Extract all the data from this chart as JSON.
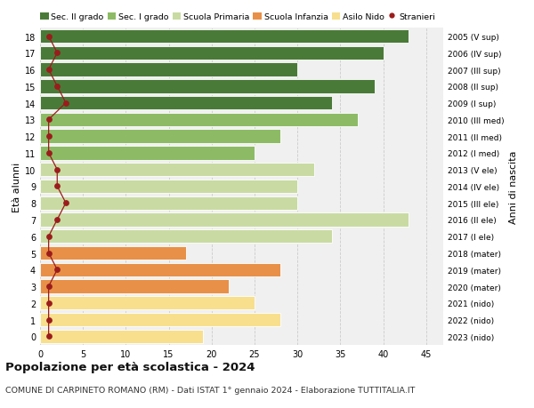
{
  "ages": [
    0,
    1,
    2,
    3,
    4,
    5,
    6,
    7,
    8,
    9,
    10,
    11,
    12,
    13,
    14,
    15,
    16,
    17,
    18
  ],
  "bar_values": [
    19,
    28,
    25,
    22,
    28,
    17,
    34,
    43,
    30,
    30,
    32,
    25,
    28,
    37,
    34,
    39,
    30,
    40,
    43
  ],
  "bar_colors": [
    "#f7df8e",
    "#f7df8e",
    "#f7df8e",
    "#e89048",
    "#e89048",
    "#e89048",
    "#c9dba2",
    "#c9dba2",
    "#c9dba2",
    "#c9dba2",
    "#c9dba2",
    "#8dbb65",
    "#8dbb65",
    "#8dbb65",
    "#4a7a38",
    "#4a7a38",
    "#4a7a38",
    "#4a7a38",
    "#4a7a38"
  ],
  "stranieri_values": [
    1,
    1,
    1,
    1,
    2,
    1,
    1,
    2,
    3,
    2,
    2,
    1,
    1,
    1,
    3,
    2,
    1,
    2,
    1
  ],
  "right_labels": [
    "2023 (nido)",
    "2022 (nido)",
    "2021 (nido)",
    "2020 (mater)",
    "2019 (mater)",
    "2018 (mater)",
    "2017 (I ele)",
    "2016 (II ele)",
    "2015 (III ele)",
    "2014 (IV ele)",
    "2013 (V ele)",
    "2012 (I med)",
    "2011 (II med)",
    "2010 (III med)",
    "2009 (I sup)",
    "2008 (II sup)",
    "2007 (III sup)",
    "2006 (IV sup)",
    "2005 (V sup)"
  ],
  "legend_labels": [
    "Sec. II grado",
    "Sec. I grado",
    "Scuola Primaria",
    "Scuola Infanzia",
    "Asilo Nido",
    "Stranieri"
  ],
  "legend_colors": [
    "#4a7a38",
    "#8dbb65",
    "#c9dba2",
    "#e89048",
    "#f7df8e",
    "#9b1c1c"
  ],
  "xlim": [
    0,
    47
  ],
  "title": "Popolazione per età scolastica - 2024",
  "subtitle": "COMUNE DI CARPINETO ROMANO (RM) - Dati ISTAT 1° gennaio 2024 - Elaborazione TUTTITALIA.IT",
  "ylabel": "Età alunni",
  "ylabel_right": "Anni di nascita",
  "background_color": "#ffffff",
  "plot_bg_color": "#f0f0f0",
  "grid_color": "#cccccc",
  "bar_height": 0.82
}
